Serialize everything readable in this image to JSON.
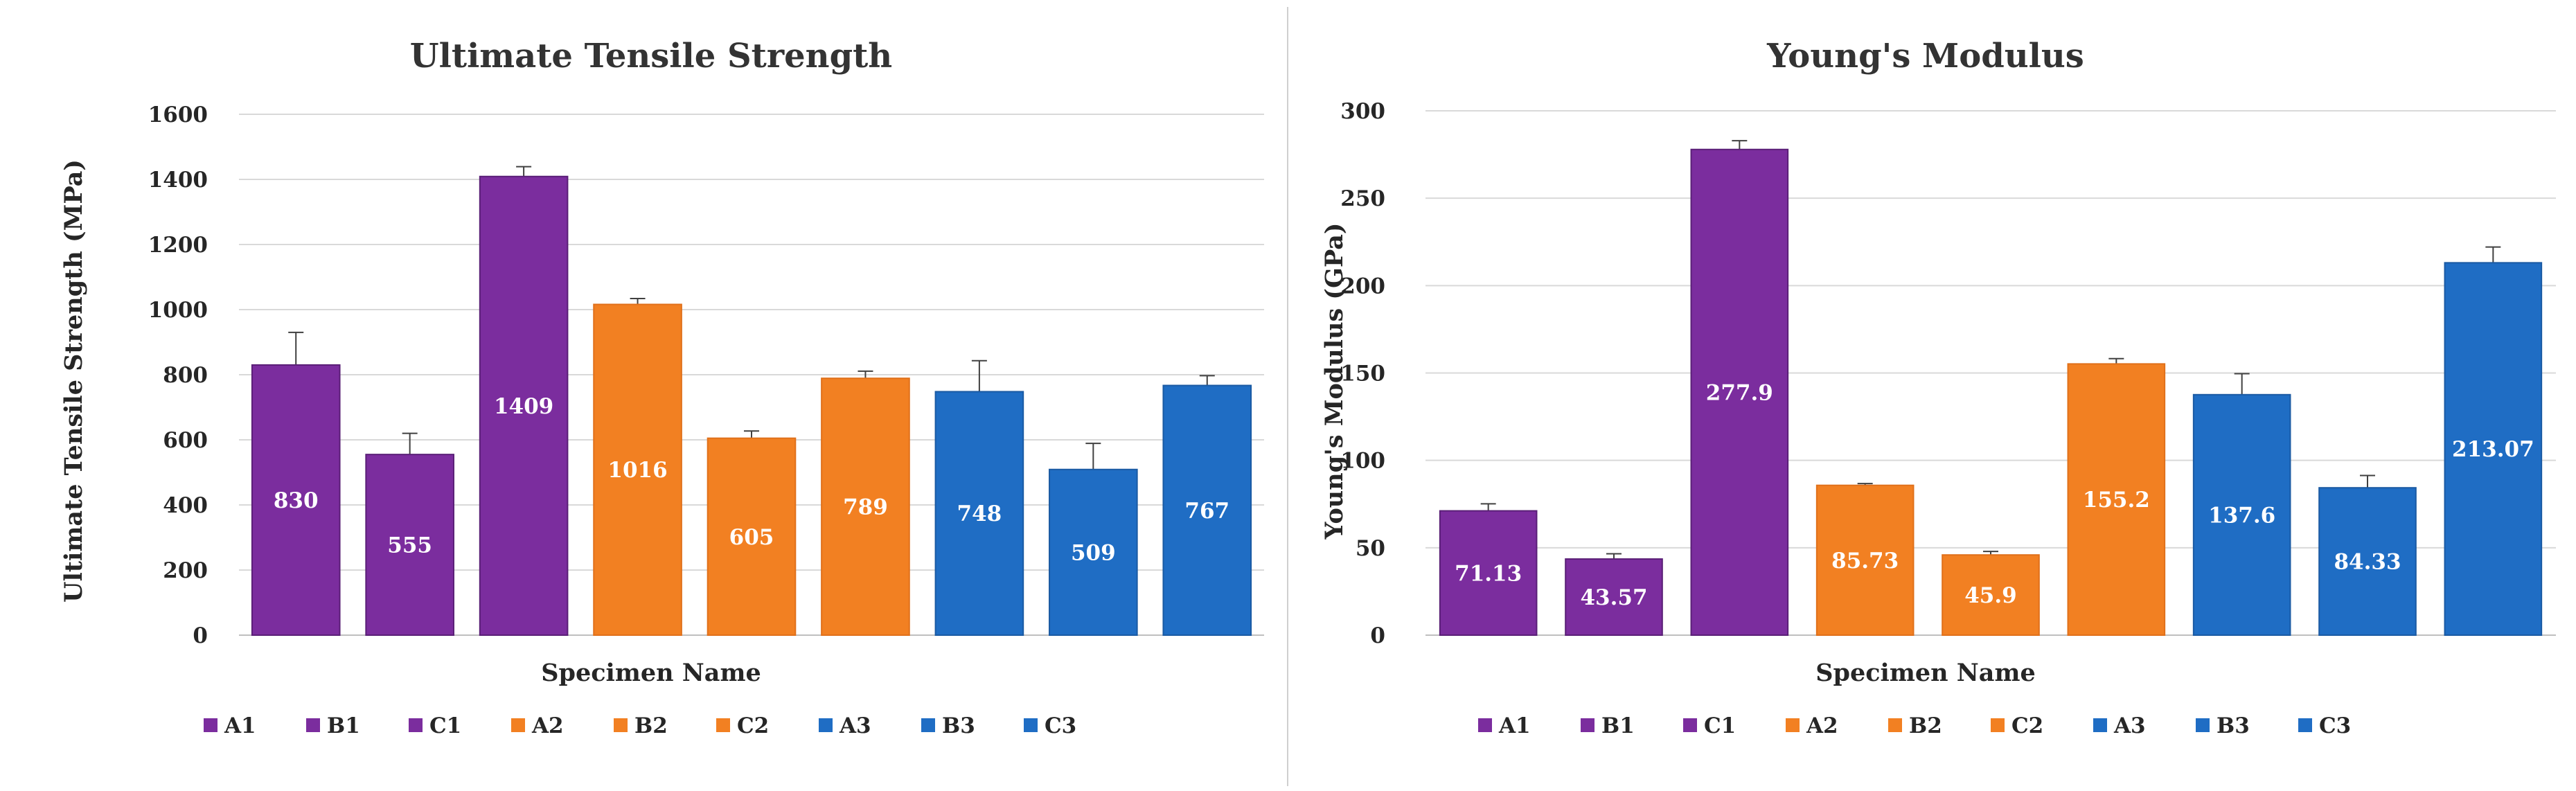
{
  "chart_data": [
    {
      "type": "bar",
      "title": "Ultimate Tensile Strength",
      "xlabel": "Specimen Name",
      "ylabel": "Ultimate Tensile Strength (MPa)",
      "ylim": [
        0,
        1600
      ],
      "yticks": [
        0,
        200,
        400,
        600,
        800,
        1000,
        1200,
        1400,
        1600
      ],
      "grid": true,
      "legend_position": "bottom",
      "categories": [
        "A1",
        "B1",
        "C1",
        "A2",
        "B2",
        "C2",
        "A3",
        "B3",
        "C3"
      ],
      "values": [
        830,
        555,
        1409,
        1016,
        605,
        789,
        748,
        509,
        767
      ],
      "errors": [
        100,
        65,
        30,
        18,
        22,
        22,
        95,
        80,
        30
      ],
      "labels": [
        "830",
        "555",
        "1409",
        "1016",
        "605",
        "789",
        "748",
        "509",
        "767"
      ],
      "colors": [
        "#7B2D9E",
        "#7B2D9E",
        "#7B2D9E",
        "#F28022",
        "#F28022",
        "#F28022",
        "#1F6DC4",
        "#1F6DC4",
        "#1F6DC4"
      ]
    },
    {
      "type": "bar",
      "title": "Young's Modulus",
      "xlabel": "Specimen Name",
      "ylabel": "Young's Modulus (GPa)",
      "ylim": [
        0,
        300
      ],
      "yticks": [
        0,
        50,
        100,
        150,
        200,
        250,
        300
      ],
      "grid": true,
      "legend_position": "bottom",
      "categories": [
        "A1",
        "B1",
        "C1",
        "A2",
        "B2",
        "C2",
        "A3",
        "B3",
        "C3"
      ],
      "values": [
        71.13,
        43.57,
        277.9,
        85.73,
        45.9,
        155.2,
        137.6,
        84.33,
        213.07
      ],
      "errors": [
        4,
        3,
        5,
        1,
        2,
        3,
        12,
        7,
        9
      ],
      "labels": [
        "71.13",
        "43.57",
        "277.9",
        "85.73",
        "45.9",
        "155.2",
        "137.6",
        "84.33",
        "213.07"
      ],
      "colors": [
        "#7B2D9E",
        "#7B2D9E",
        "#7B2D9E",
        "#F28022",
        "#F28022",
        "#F28022",
        "#1F6DC4",
        "#1F6DC4",
        "#1F6DC4"
      ]
    }
  ]
}
